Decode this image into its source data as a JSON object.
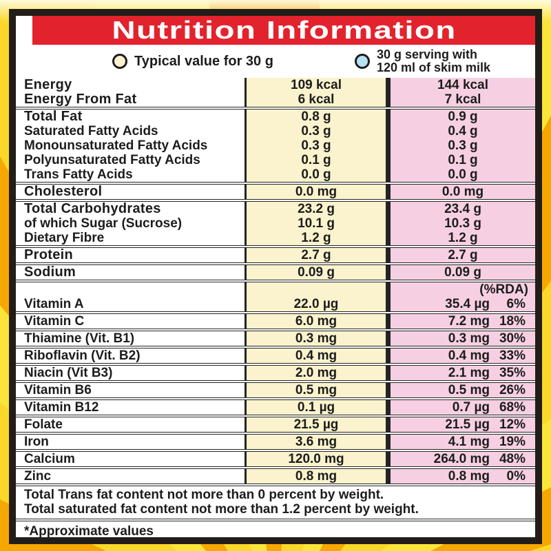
{
  "title": "Nutrition Information",
  "legend": {
    "typical": {
      "label": "Typical value for 30 g",
      "swatch_color": "#faf3cd"
    },
    "with_milk": {
      "label_line1": "30 g serving with",
      "label_line2": "120 ml of skim milk",
      "swatch_color": "#b9e1f4"
    }
  },
  "colors": {
    "banner_red": "#e2232d",
    "typical_column_bg": "#faf3cd",
    "milk_column_bg": "#f6d0e2",
    "rule": "#242424",
    "outer_yellow": "#f9e239",
    "ray_orange": "#f6a702"
  },
  "table": {
    "rda_header": "(%RDA)",
    "groups": [
      {
        "rows": [
          {
            "label": "Energy",
            "v1": "109 kcal",
            "v2": "144 kcal"
          },
          {
            "label": "Energy From Fat",
            "v1": "6 kcal",
            "v2": "7 kcal"
          }
        ]
      },
      {
        "rows": [
          {
            "label": "Total Fat",
            "v1": "0.8 g",
            "v2": "0.9 g"
          },
          {
            "label": "Saturated Fatty Acids",
            "v1": "0.3 g",
            "v2": "0.4 g"
          },
          {
            "label": "Monounsaturated Fatty Acids",
            "v1": "0.3 g",
            "v2": "0.3 g"
          },
          {
            "label": "Polyunsaturated Fatty Acids",
            "v1": "0.1 g",
            "v2": "0.1 g"
          },
          {
            "label": "Trans Fatty Acids",
            "v1": "0.0 g",
            "v2": "0.0 g"
          }
        ]
      },
      {
        "rows": [
          {
            "label": "Cholesterol",
            "v1": "0.0 mg",
            "v2": "0.0 mg"
          }
        ]
      },
      {
        "rows": [
          {
            "label": "Total Carbohydrates",
            "v1": "23.2 g",
            "v2": "23.4 g"
          },
          {
            "label": "of which Sugar (Sucrose)",
            "v1": "10.1 g",
            "v2": "10.3 g"
          },
          {
            "label": "Dietary Fibre",
            "v1": "1.2 g",
            "v2": "1.2 g"
          }
        ]
      },
      {
        "rows": [
          {
            "label": "Protein",
            "v1": "2.7 g",
            "v2": "2.7 g"
          }
        ]
      },
      {
        "rows": [
          {
            "label": "Sodium",
            "v1": "0.09 g",
            "v2": "0.09 g"
          }
        ]
      }
    ],
    "vitamins": [
      {
        "label": "Vitamin A",
        "v1": "22.0 µg",
        "v2": "35.4 µg",
        "rda": "6%"
      },
      {
        "label": "Vitamin C",
        "v1": "6.0 mg",
        "v2": "7.2 mg",
        "rda": "18%"
      },
      {
        "label": "Thiamine (Vit. B1)",
        "v1": "0.3 mg",
        "v2": "0.3 mg",
        "rda": "30%"
      },
      {
        "label": "Riboflavin (Vit. B2)",
        "v1": "0.4 mg",
        "v2": "0.4 mg",
        "rda": "33%"
      },
      {
        "label": "Niacin (Vit B3)",
        "v1": "2.0 mg",
        "v2": "2.1 mg",
        "rda": "35%"
      },
      {
        "label": "Vitamin B6",
        "v1": "0.5 mg",
        "v2": "0.5 mg",
        "rda": "26%"
      },
      {
        "label": "Vitamin B12",
        "v1": "0.1 µg",
        "v2": "0.7 µg",
        "rda": "68%"
      },
      {
        "label": "Folate",
        "v1": "21.5 µg",
        "v2": "21.5 µg",
        "rda": "12%"
      },
      {
        "label": "Iron",
        "v1": "3.6 mg",
        "v2": "4.1 mg",
        "rda": "19%"
      },
      {
        "label": "Calcium",
        "v1": "120.0 mg",
        "v2": "264.0 mg",
        "rda": "48%"
      },
      {
        "label": "Zinc",
        "v1": "0.8 mg",
        "v2": "0.8 mg",
        "rda": "0%"
      }
    ]
  },
  "footnotes": {
    "line1": "Total Trans fat content not more than 0 percent by weight.",
    "line2": "Total saturated fat content not more than 1.2 percent by weight."
  },
  "approx_note": "*Approximate values"
}
